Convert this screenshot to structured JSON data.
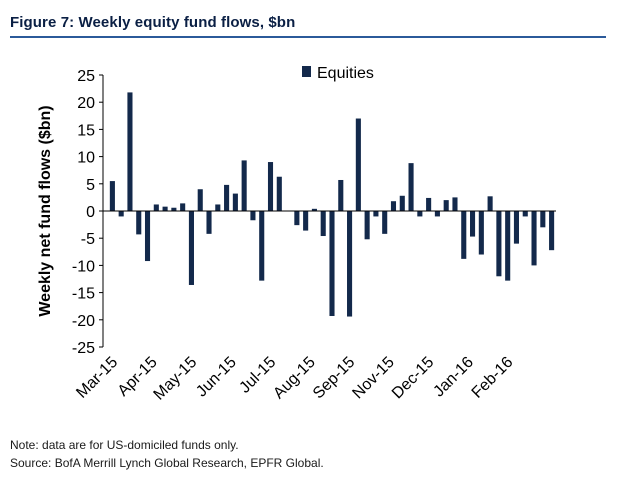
{
  "figure": {
    "title": "Figure 7: Weekly equity fund flows, $bn",
    "note": "Note: data are for US-domiciled funds only.",
    "source": "Source: BofA Merrill Lynch Global Research, EPFR Global."
  },
  "colors": {
    "bar": "#13294b",
    "title": "#0a1f44",
    "rule": "#2b5a9a"
  },
  "chart_data": {
    "type": "bar",
    "ylabel": "Weekly net fund flows ($bn)",
    "ylim": [
      -25,
      25
    ],
    "yticks": [
      25,
      20,
      15,
      10,
      5,
      0,
      -5,
      -10,
      -15,
      -20,
      -25
    ],
    "grid": false,
    "legend": {
      "position": "top-center",
      "entries": [
        "Equities"
      ]
    },
    "xtick_labels": [
      "Mar-15",
      "Apr-15",
      "May-15",
      "Jun-15",
      "Jul-15",
      "Aug-15",
      "Sep-15",
      "Nov-15",
      "Dec-15",
      "Jan-16",
      "Feb-16"
    ],
    "xtick_positions": [
      0,
      4.5,
      9,
      13.5,
      18,
      22.5,
      27,
      31.5,
      36,
      40.5,
      45
    ],
    "series": [
      {
        "name": "Equities",
        "values": [
          5.5,
          -1.0,
          21.8,
          -4.3,
          -9.2,
          1.2,
          0.8,
          0.6,
          1.4,
          -13.6,
          4.0,
          -4.2,
          1.2,
          4.8,
          3.2,
          9.3,
          -1.7,
          -12.8,
          9.0,
          6.3,
          0.0,
          -2.6,
          -3.6,
          0.4,
          -4.6,
          -19.3,
          5.7,
          -19.4,
          17.0,
          -5.2,
          -1.0,
          -4.2,
          1.8,
          2.8,
          8.8,
          -1.0,
          2.4,
          -1.0,
          2.0,
          2.5,
          -8.8,
          -4.7,
          -8.0,
          2.7,
          -12.0,
          -12.8,
          -6.0,
          -1.0,
          -10.0,
          -3.0,
          -7.2
        ]
      }
    ]
  }
}
